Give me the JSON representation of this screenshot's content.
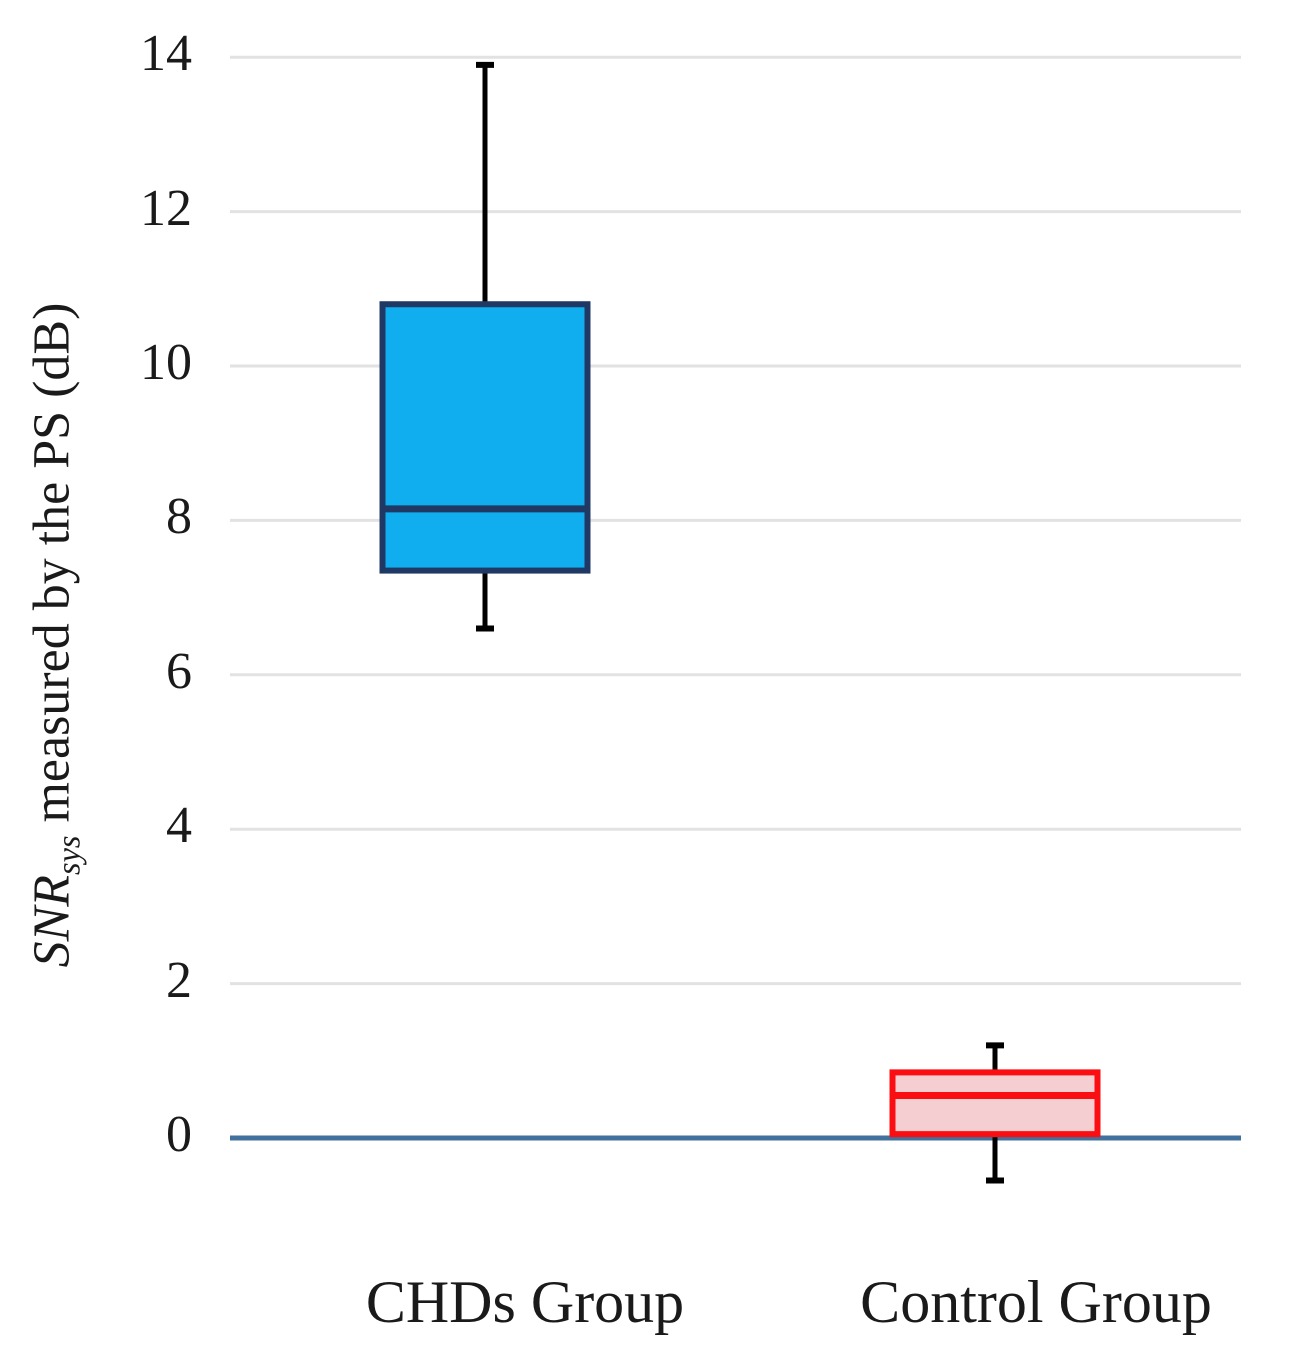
{
  "figure": {
    "background": "#ffffff"
  },
  "chart_data": {
    "type": "boxplot",
    "title": "",
    "ylabel": "SNR_sys measured by the PS (dB)",
    "ylabel_parts": {
      "var": "SNR",
      "sub": "sys",
      "rest": " measured by the PS (dB)"
    },
    "categories": [
      "CHDs Group",
      "Control Group"
    ],
    "yticks": [
      0,
      2,
      4,
      6,
      8,
      10,
      12,
      14
    ],
    "ylim": [
      -1.6,
      14.6
    ],
    "grid": true,
    "legend": false,
    "series": [
      {
        "name": "CHDs Group",
        "whisker_low": 6.6,
        "q1": 7.35,
        "median": 8.15,
        "q3": 10.8,
        "whisker_high": 13.9,
        "fill": "#10aeef",
        "border": "#1f3864",
        "median_color": "#1f3864"
      },
      {
        "name": "Control Group",
        "whisker_low": -0.55,
        "q1": 0.05,
        "median": 0.55,
        "q3": 0.85,
        "whisker_high": 1.2,
        "fill": "#f5ced2",
        "border": "#fb0e12",
        "median_color": "#fb0e12"
      }
    ],
    "colors": {
      "axis_line": "#41719c",
      "gridline": "#e2e2e2",
      "whisker": "#000000",
      "text": "#1a1a1a"
    }
  }
}
